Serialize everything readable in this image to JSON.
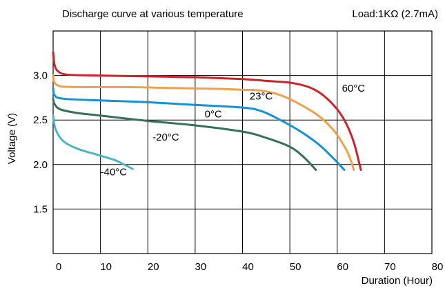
{
  "chart_data": {
    "type": "line",
    "title": "Discharge curve at various temperature",
    "subtitle": "Load:1KΩ (2.7mA)",
    "xlabel": "Duration (Hour)",
    "ylabel": "Voltage (V)",
    "xlim": [
      0,
      80
    ],
    "ylim": [
      1.0,
      3.5
    ],
    "x_ticks": [
      0,
      10,
      20,
      30,
      40,
      50,
      60,
      70,
      80
    ],
    "x_tick_labels": [
      "0",
      "10",
      "20",
      "30",
      "40",
      "50",
      "60",
      "70",
      "80"
    ],
    "y_ticks": [
      1.5,
      2.0,
      2.5,
      3.0
    ],
    "y_tick_labels": [
      "1.5",
      "2.0",
      "2.5",
      "3.0"
    ],
    "grid": true,
    "legend": "none (labels placed on curves)",
    "series": [
      {
        "name": "60°C",
        "color": "#cc2229",
        "label_at": [
          61.0,
          2.82
        ],
        "points": [
          [
            0,
            3.26
          ],
          [
            0.3,
            3.12
          ],
          [
            1,
            3.05
          ],
          [
            3,
            3.01
          ],
          [
            10,
            3.0
          ],
          [
            20,
            2.99
          ],
          [
            30,
            2.98
          ],
          [
            40,
            2.96
          ],
          [
            45,
            2.94
          ],
          [
            50,
            2.92
          ],
          [
            54,
            2.87
          ],
          [
            57,
            2.78
          ],
          [
            60,
            2.62
          ],
          [
            62,
            2.45
          ],
          [
            63.5,
            2.25
          ],
          [
            64.5,
            2.05
          ],
          [
            65,
            1.94
          ]
        ]
      },
      {
        "name": "23°C",
        "color": "#f0a04b",
        "label_at": [
          41.5,
          2.73
        ],
        "points": [
          [
            0,
            3.0
          ],
          [
            0.3,
            2.92
          ],
          [
            1.5,
            2.88
          ],
          [
            5,
            2.87
          ],
          [
            15,
            2.87
          ],
          [
            25,
            2.86
          ],
          [
            35,
            2.85
          ],
          [
            40,
            2.84
          ],
          [
            44,
            2.83
          ],
          [
            48,
            2.78
          ],
          [
            52,
            2.68
          ],
          [
            56,
            2.55
          ],
          [
            59,
            2.4
          ],
          [
            61,
            2.25
          ],
          [
            62.5,
            2.1
          ],
          [
            63.5,
            1.94
          ]
        ]
      },
      {
        "name": "0°C",
        "color": "#1592d4",
        "label_at": [
          32.0,
          2.53
        ],
        "points": [
          [
            0,
            2.86
          ],
          [
            0.3,
            2.78
          ],
          [
            2,
            2.74
          ],
          [
            10,
            2.72
          ],
          [
            20,
            2.7
          ],
          [
            30,
            2.67
          ],
          [
            40,
            2.64
          ],
          [
            44,
            2.6
          ],
          [
            48,
            2.5
          ],
          [
            52,
            2.38
          ],
          [
            56,
            2.23
          ],
          [
            59,
            2.08
          ],
          [
            61.5,
            1.94
          ]
        ]
      },
      {
        "name": "-20°C",
        "color": "#35705f",
        "label_at": [
          21.0,
          2.27
        ],
        "points": [
          [
            0,
            2.74
          ],
          [
            0.3,
            2.68
          ],
          [
            1.5,
            2.62
          ],
          [
            5,
            2.58
          ],
          [
            10,
            2.55
          ],
          [
            20,
            2.49
          ],
          [
            30,
            2.44
          ],
          [
            40,
            2.37
          ],
          [
            45,
            2.3
          ],
          [
            50,
            2.2
          ],
          [
            53,
            2.08
          ],
          [
            55.5,
            1.94
          ]
        ]
      },
      {
        "name": "-40°C",
        "color": "#48b5c0",
        "label_at": [
          10.0,
          1.88
        ],
        "points": [
          [
            0,
            2.55
          ],
          [
            0.5,
            2.4
          ],
          [
            2,
            2.27
          ],
          [
            5,
            2.18
          ],
          [
            10,
            2.1
          ],
          [
            13,
            2.05
          ],
          [
            15,
            2.0
          ],
          [
            16.8,
            1.95
          ]
        ]
      }
    ]
  }
}
